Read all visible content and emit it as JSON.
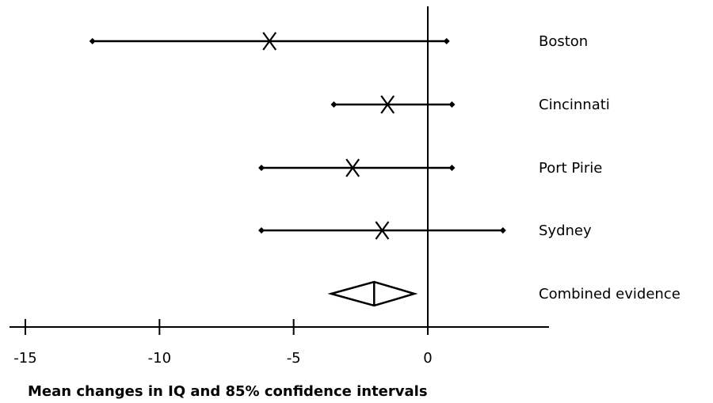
{
  "chart_data": {
    "type": "forest",
    "xlabel": "Mean changes in IQ and 85% confidence intervals",
    "xlim": [
      -15.5,
      4.6
    ],
    "ticks": [
      -15,
      -10,
      -5,
      0
    ],
    "tick_labels": [
      "-15",
      "-10",
      "-5",
      "0"
    ],
    "studies": [
      {
        "label": "Boston",
        "estimate": -5.9,
        "lower": -12.5,
        "upper": 0.7
      },
      {
        "label": "Cincinnati",
        "estimate": -1.5,
        "lower": -3.5,
        "upper": 0.9
      },
      {
        "label": "Port Pirie",
        "estimate": -2.8,
        "lower": -6.2,
        "upper": 0.9
      },
      {
        "label": "Sydney",
        "estimate": -1.7,
        "lower": -6.2,
        "upper": 2.8
      }
    ],
    "combined": {
      "label": "Combined evidence",
      "estimate": -2.0,
      "lower": -3.6,
      "upper": -0.5
    },
    "reference_line": 0
  }
}
